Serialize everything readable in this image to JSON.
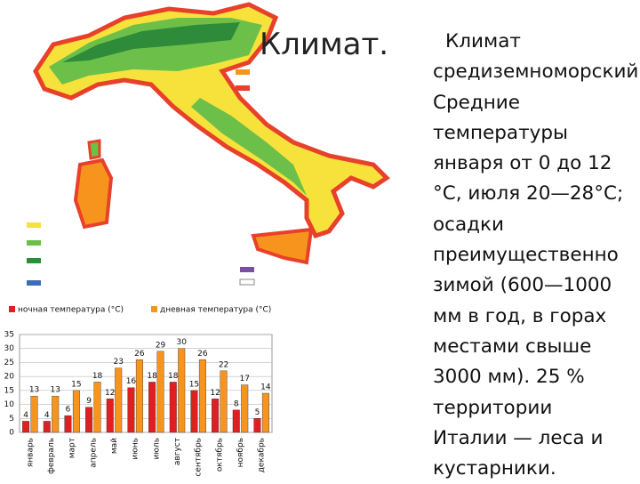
{
  "slide": {
    "title": "Климат.",
    "text": "Климат средиземноморский. Средние температуры января от 0 до 12 °С, июля 20—28°С; осадки преимущественно зимой (600—1000 мм в год, в горах местами свыше 3000 мм). 25 % территории Италии — леса и кустарники."
  },
  "chart_data": {
    "type": "bar",
    "categories": [
      "январь",
      "февраль",
      "март",
      "апрель",
      "май",
      "июнь",
      "июль",
      "август",
      "сентябрь",
      "октябрь",
      "ноябрь",
      "декабрь"
    ],
    "series": [
      {
        "name": "ночная температура (°C)",
        "color": "#e02020",
        "values": [
          4,
          4,
          6,
          9,
          12,
          16,
          18,
          18,
          15,
          12,
          8,
          5
        ]
      },
      {
        "name": "дневная температура (°C)",
        "color": "#f7941d",
        "values": [
          13,
          13,
          15,
          18,
          23,
          26,
          29,
          30,
          26,
          22,
          17,
          14
        ]
      }
    ],
    "ylim": [
      0,
      35
    ],
    "yticks": [
      0,
      5,
      10,
      15,
      20,
      25,
      30,
      35
    ],
    "grid": true
  }
}
